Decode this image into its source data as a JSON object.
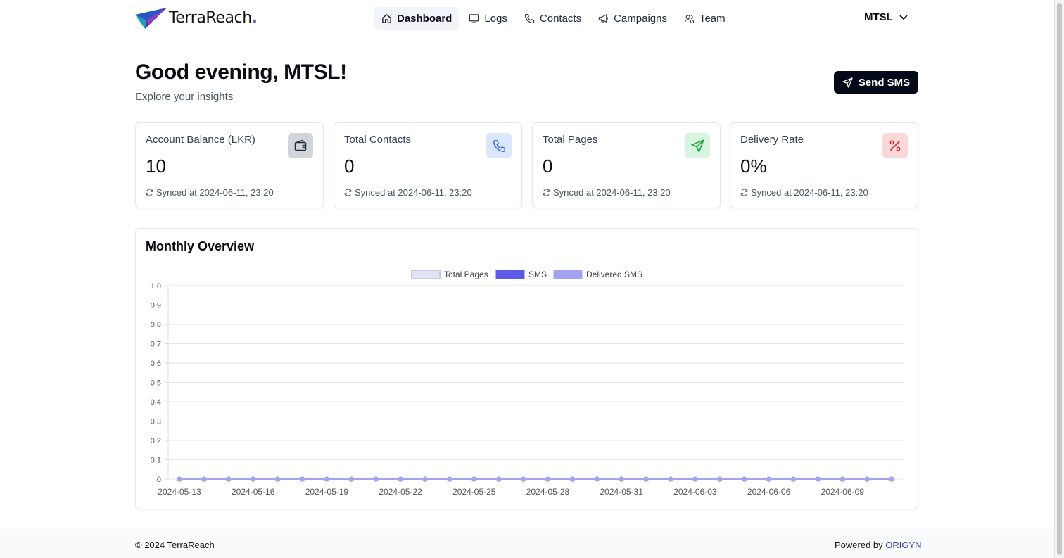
{
  "brand": {
    "name": "TerraReach",
    "dot": "."
  },
  "nav": {
    "items": [
      {
        "label": "Dashboard",
        "icon": "home-icon",
        "active": true
      },
      {
        "label": "Logs",
        "icon": "monitor-icon",
        "active": false
      },
      {
        "label": "Contacts",
        "icon": "phone-icon",
        "active": false
      },
      {
        "label": "Campaigns",
        "icon": "megaphone-icon",
        "active": false
      },
      {
        "label": "Team",
        "icon": "users-icon",
        "active": false
      }
    ],
    "account": "MTSL"
  },
  "header": {
    "greeting": "Good evening, MTSL!",
    "subtitle": "Explore your insights",
    "send_button": "Send SMS"
  },
  "cards": [
    {
      "title": "Account Balance (LKR)",
      "value": "10",
      "sync": "Synced at 2024-06-11, 23:20",
      "icon": "wallet-icon",
      "icon_bg": "#d1d5db",
      "icon_color": "#1f2937"
    },
    {
      "title": "Total Contacts",
      "value": "0",
      "sync": "Synced at 2024-06-11, 23:20",
      "icon": "phone-icon",
      "icon_bg": "#dbe7fb",
      "icon_color": "#2563eb"
    },
    {
      "title": "Total Pages",
      "value": "0",
      "sync": "Synced at 2024-06-11, 23:20",
      "icon": "send-icon",
      "icon_bg": "#d7f5df",
      "icon_color": "#16a34a"
    },
    {
      "title": "Delivery Rate",
      "value": "0%",
      "sync": "Synced at 2024-06-11, 23:20",
      "icon": "percent-icon",
      "icon_bg": "#fcd9d9",
      "icon_color": "#dc2626"
    }
  ],
  "chart_data": {
    "type": "line",
    "title": "Monthly Overview",
    "x": [
      "2024-05-13",
      "2024-05-14",
      "2024-05-15",
      "2024-05-16",
      "2024-05-17",
      "2024-05-18",
      "2024-05-19",
      "2024-05-20",
      "2024-05-21",
      "2024-05-22",
      "2024-05-23",
      "2024-05-24",
      "2024-05-25",
      "2024-05-26",
      "2024-05-27",
      "2024-05-28",
      "2024-05-29",
      "2024-05-30",
      "2024-05-31",
      "2024-06-01",
      "2024-06-02",
      "2024-06-03",
      "2024-06-04",
      "2024-06-05",
      "2024-06-06",
      "2024-06-07",
      "2024-06-08",
      "2024-06-09",
      "2024-06-10",
      "2024-06-11"
    ],
    "x_tick_labels": [
      "2024-05-13",
      "2024-05-16",
      "2024-05-19",
      "2024-05-22",
      "2024-05-25",
      "2024-05-28",
      "2024-05-31",
      "2024-06-03",
      "2024-06-06",
      "2024-06-09"
    ],
    "y_ticks": [
      "1.0",
      "0.9",
      "0.8",
      "0.7",
      "0.6",
      "0.5",
      "0.4",
      "0.3",
      "0.2",
      "0.1",
      "0"
    ],
    "ylim": [
      0,
      1
    ],
    "grid": true,
    "legend_position": "top-center",
    "series": [
      {
        "name": "Total Pages",
        "color": "#c7c9f0",
        "fill": "#e3e4f1",
        "values": [
          0,
          0,
          0,
          0,
          0,
          0,
          0,
          0,
          0,
          0,
          0,
          0,
          0,
          0,
          0,
          0,
          0,
          0,
          0,
          0,
          0,
          0,
          0,
          0,
          0,
          0,
          0,
          0,
          0,
          0
        ]
      },
      {
        "name": "SMS",
        "color": "#5b5be8",
        "fill": "#5b5be8",
        "values": [
          0,
          0,
          0,
          0,
          0,
          0,
          0,
          0,
          0,
          0,
          0,
          0,
          0,
          0,
          0,
          0,
          0,
          0,
          0,
          0,
          0,
          0,
          0,
          0,
          0,
          0,
          0,
          0,
          0,
          0
        ]
      },
      {
        "name": "Delivered SMS",
        "color": "#a3a4f0",
        "fill": "#a3a4f0",
        "values": [
          0,
          0,
          0,
          0,
          0,
          0,
          0,
          0,
          0,
          0,
          0,
          0,
          0,
          0,
          0,
          0,
          0,
          0,
          0,
          0,
          0,
          0,
          0,
          0,
          0,
          0,
          0,
          0,
          0,
          0
        ]
      }
    ]
  },
  "footer": {
    "copyright": "© 2024 TerraReach",
    "powered_prefix": "Powered by ",
    "powered_link": "ORIGYN"
  }
}
